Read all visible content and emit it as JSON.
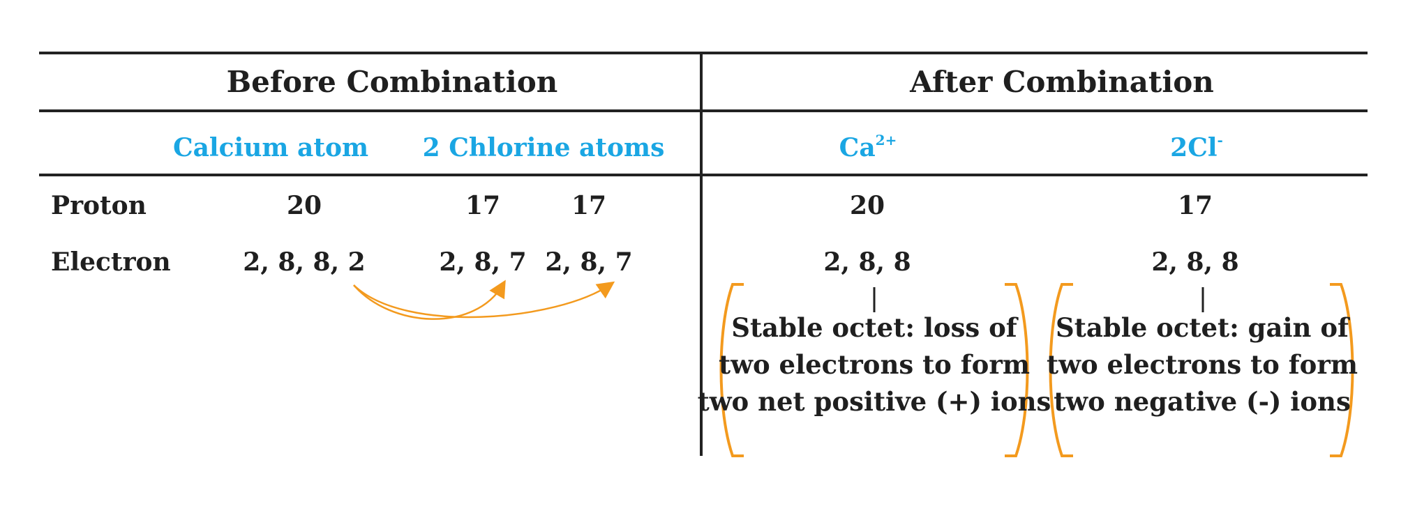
{
  "headers": {
    "before": "Before Combination",
    "after": "After Combination"
  },
  "columns": {
    "calcium_atom": "Calcium atom",
    "chlorine_atoms": "2 Chlorine atoms",
    "ca_ion_base": "Ca",
    "ca_ion_charge": "2+",
    "cl_ion_base": "2Cl",
    "cl_ion_charge": "-"
  },
  "rows": {
    "proton": {
      "label": "Proton",
      "calcium": "20",
      "chlorine_1": "17",
      "chlorine_2": "17",
      "ca_ion": "20",
      "cl_ion": "17"
    },
    "electron": {
      "label": "Electron",
      "calcium": "2, 8, 8, 2",
      "chlorine_1": "2, 8, 7",
      "chlorine_2": "2, 8, 7",
      "ca_ion": "2, 8, 8",
      "cl_ion": "2, 8, 8"
    }
  },
  "notes": {
    "ca": [
      "Stable octet: loss of",
      "two electrons to form",
      "two net positive (+) ions"
    ],
    "cl": [
      "Stable octet: gain of",
      "two electrons to form",
      "two negative (-) ions"
    ]
  },
  "colors": {
    "arrow": "#f39a1e",
    "bracket": "#f39a1e",
    "subheader": "#1aa6e3",
    "rule": "#222222"
  }
}
